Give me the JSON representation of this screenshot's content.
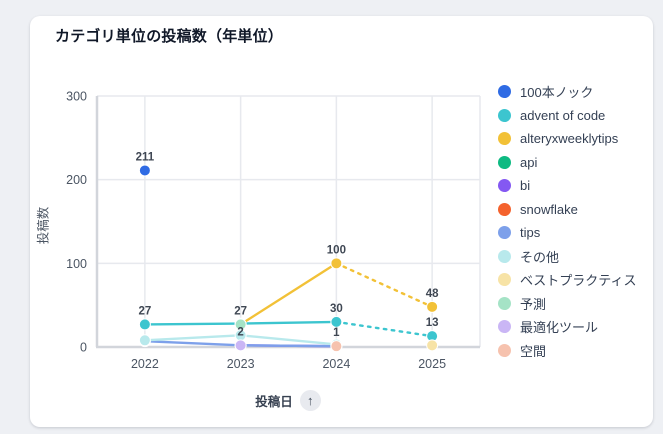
{
  "page": {
    "background": "#eef0f4",
    "card_background": "#ffffff"
  },
  "header": {
    "title": "カテゴリ単位の投稿数（年単位）"
  },
  "sort_button": {
    "icon": "arrow-up",
    "glyph": "↑"
  },
  "chart_data": {
    "type": "line",
    "title": "カテゴリ単位の投稿数（年単位）",
    "xlabel": "投稿日",
    "ylabel": "投稿数",
    "categories": [
      "2022",
      "2023",
      "2024",
      "2025"
    ],
    "ylim": [
      0,
      300
    ],
    "yticks": [
      0,
      100,
      200,
      300
    ],
    "grid": true,
    "legend_position": "right",
    "dashed_to_last_category": true,
    "colors": {
      "grid": "#e7e9ee",
      "axis": "#d2d5db",
      "tick_text": "#4b5563",
      "data_label_text": "#3f4753"
    },
    "series": [
      {
        "name": "100本ノック",
        "color": "#2f6be4",
        "values": [
          211,
          null,
          null,
          null
        ],
        "labels": [
          "211",
          "",
          "",
          ""
        ]
      },
      {
        "name": "advent of code",
        "color": "#3cc5cf",
        "values": [
          27,
          28,
          30,
          13
        ],
        "labels": [
          "27",
          "",
          "30",
          "13"
        ]
      },
      {
        "name": "alteryxweeklytips",
        "color": "#f2c137",
        "values": [
          null,
          27,
          100,
          48
        ],
        "labels": [
          "",
          "",
          "100",
          "48"
        ]
      },
      {
        "name": "api",
        "color": "#0eba82",
        "values": [
          null,
          null,
          null,
          null
        ],
        "labels": [
          "",
          "",
          "",
          ""
        ]
      },
      {
        "name": "bi",
        "color": "#8458f2",
        "values": [
          null,
          2,
          1,
          null
        ],
        "labels": [
          "",
          "",
          "",
          ""
        ]
      },
      {
        "name": "snowflake",
        "color": "#f4622d",
        "values": [
          null,
          null,
          null,
          null
        ],
        "labels": [
          "",
          "",
          "",
          ""
        ]
      },
      {
        "name": "tips",
        "color": "#7da0ea",
        "values": [
          7,
          2,
          1,
          null
        ],
        "labels": [
          "",
          "",
          "",
          ""
        ]
      },
      {
        "name": "その他",
        "color": "#b8e9ec",
        "values": [
          8,
          14,
          3,
          null
        ],
        "labels": [
          "",
          "",
          "",
          ""
        ]
      },
      {
        "name": "ベストプラクティス",
        "color": "#f7e3a6",
        "values": [
          null,
          null,
          null,
          2
        ],
        "labels": [
          "",
          "",
          "",
          ""
        ]
      },
      {
        "name": "予測",
        "color": "#a5e3c6",
        "values": [
          null,
          27,
          null,
          null
        ],
        "labels": [
          "",
          "27",
          "",
          ""
        ]
      },
      {
        "name": "最適化ツール",
        "color": "#cab6f5",
        "values": [
          null,
          2,
          null,
          null
        ],
        "labels": [
          "",
          "2",
          "",
          ""
        ]
      },
      {
        "name": "空間",
        "color": "#f6c2ae",
        "values": [
          null,
          null,
          1,
          null
        ],
        "labels": [
          "",
          "",
          "1",
          ""
        ]
      }
    ]
  }
}
